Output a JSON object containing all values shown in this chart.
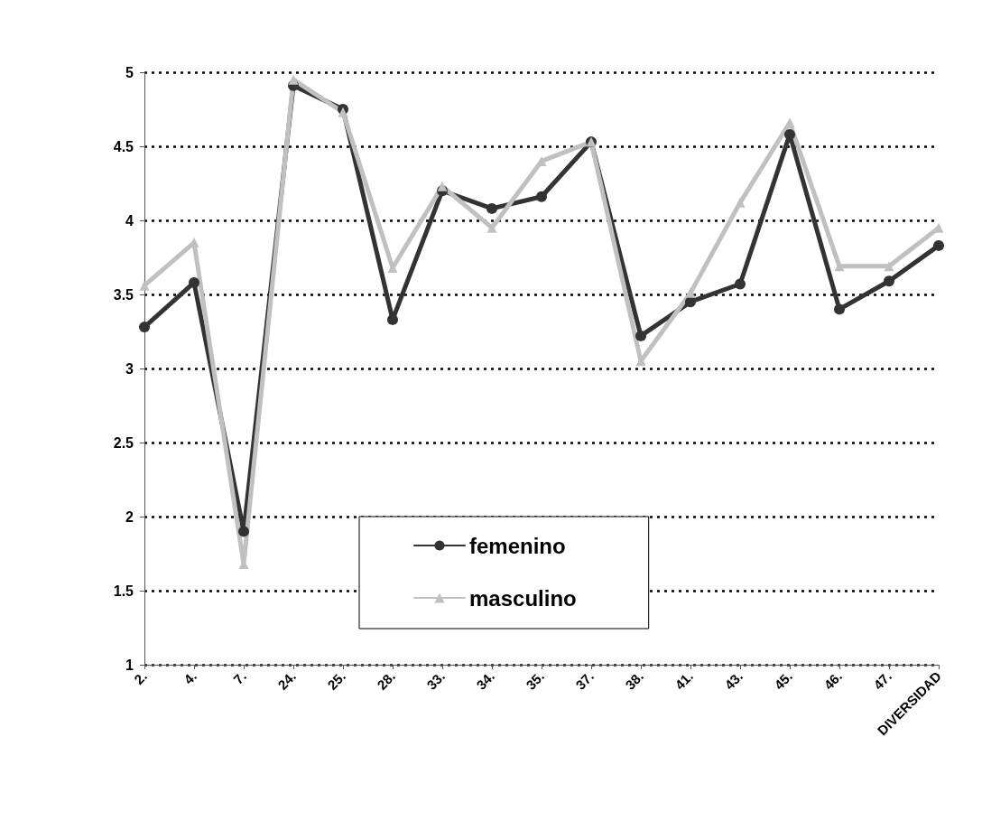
{
  "chart_data": {
    "type": "line",
    "categories": [
      "2.",
      "4.",
      "7.",
      "24.",
      "25.",
      "28.",
      "33.",
      "34.",
      "35.",
      "37.",
      "38.",
      "41.",
      "43.",
      "45.",
      "46.",
      "47.",
      "DIVERSIDAD"
    ],
    "series": [
      {
        "name": "femenino",
        "color": "#333333",
        "marker": "circle",
        "values": [
          3.28,
          3.58,
          1.9,
          4.91,
          4.75,
          3.33,
          4.2,
          4.08,
          4.16,
          4.53,
          3.22,
          3.45,
          3.57,
          4.58,
          3.4,
          3.59,
          3.83
        ]
      },
      {
        "name": "masculino",
        "color": "#c0c0c0",
        "marker": "triangle",
        "values": [
          3.56,
          3.85,
          1.68,
          4.95,
          4.73,
          3.68,
          4.23,
          3.95,
          4.4,
          4.53,
          3.05,
          3.51,
          4.12,
          4.66,
          3.69,
          3.69,
          3.95
        ]
      }
    ],
    "ylim": [
      1,
      5
    ],
    "yticks": [
      1,
      1.5,
      2,
      2.5,
      3,
      3.5,
      4,
      4.5,
      5
    ],
    "grid": "y",
    "legend": "bottom",
    "line_style": "solid"
  }
}
